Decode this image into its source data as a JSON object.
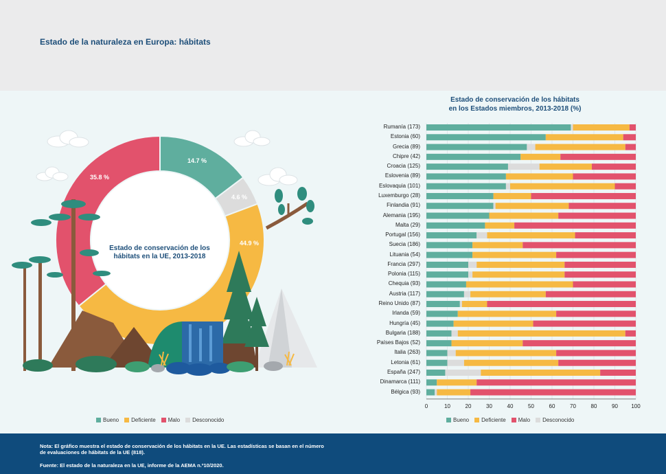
{
  "header": {
    "title": "Estado de la naturaleza en Europa: hábitats"
  },
  "donut": {
    "center_label": "Estado de conservación de los hábitats en la UE, 2013-2018",
    "labels": {
      "bueno": "14.7 %",
      "desconocido": "4.6 %",
      "deficiente": "44.9 %",
      "malo": "35.8 %"
    }
  },
  "right_chart": {
    "title_line1": "Estado de conservación de los hábitats",
    "title_line2": "en los Estados miembros, 2013-2018 (%)"
  },
  "legend": {
    "bueno": "Bueno",
    "deficiente": "Deficiente",
    "malo": "Malo",
    "desconocido": "Desconocido"
  },
  "colors": {
    "bueno": "#5fae9e",
    "deficiente": "#f6b943",
    "malo": "#e2526c",
    "desconocido": "#dcdcdc"
  },
  "footer": {
    "note": "Nota: El gráfico muestra el estado de conservación de los hábitats en la UE. Las estadísticas se basan en el número de evaluaciones de hábitats de la UE (818).",
    "source": "Fuente: El estado de la naturaleza en la UE, informe de la AEMA n.º10/2020."
  },
  "chart_data": [
    {
      "type": "pie",
      "categories": [
        "Bueno",
        "Desconocido",
        "Deficiente",
        "Malo"
      ],
      "values": [
        14.7,
        4.6,
        44.9,
        35.8
      ]
    },
    {
      "type": "bar",
      "orientation": "horizontal",
      "stacked": true,
      "xlim": [
        0,
        100
      ],
      "xticks": [
        0,
        10,
        20,
        30,
        40,
        50,
        60,
        70,
        80,
        90,
        100
      ],
      "categories": [
        "Rumanía (173)",
        "Estonia (60)",
        "Grecia (89)",
        "Chipre (42)",
        "Croacia (125)",
        "Eslovenia (89)",
        "Eslovaquia (101)",
        "Luxemburgo (28)",
        "Finlandia (91)",
        "Alemania (195)",
        "Malta (29)",
        "Portugal (156)",
        "Suecia (186)",
        "Lituania (54)",
        "Francia (297)",
        "Polonia (115)",
        "Chequia (93)",
        "Austria (117)",
        "Reino Unido (87)",
        "Irlanda (59)",
        "Hungría (45)",
        "Bulgaria (188)",
        "Países Bajos (52)",
        "Italia (263)",
        "Letonia (61)",
        "España (247)",
        "Dinamarca (111)",
        "Bélgica (93)"
      ],
      "series": [
        {
          "name": "Bueno",
          "values": [
            69,
            57,
            48,
            45,
            39,
            38,
            38,
            32,
            32,
            30,
            28,
            24,
            22,
            22,
            20,
            20,
            19,
            18,
            16,
            15,
            13,
            12,
            12,
            10,
            10,
            9,
            5,
            4
          ]
        },
        {
          "name": "Desconocido",
          "values": [
            1,
            0,
            4,
            0,
            15,
            0,
            2,
            0,
            1,
            0,
            0,
            5,
            0,
            0,
            4,
            2,
            0,
            3,
            1,
            0,
            0,
            3,
            0,
            4,
            8,
            17,
            0,
            1
          ]
        },
        {
          "name": "Deficiente",
          "values": [
            27,
            37,
            43,
            19,
            25,
            32,
            50,
            18,
            35,
            33,
            14,
            42,
            24,
            40,
            42,
            44,
            51,
            36,
            12,
            47,
            38,
            80,
            34,
            48,
            45,
            57,
            19,
            16
          ]
        },
        {
          "name": "Malo",
          "values": [
            3,
            6,
            5,
            36,
            21,
            30,
            10,
            50,
            32,
            37,
            58,
            29,
            54,
            38,
            34,
            34,
            30,
            43,
            71,
            38,
            49,
            5,
            54,
            38,
            37,
            17,
            76,
            79
          ]
        }
      ]
    }
  ]
}
